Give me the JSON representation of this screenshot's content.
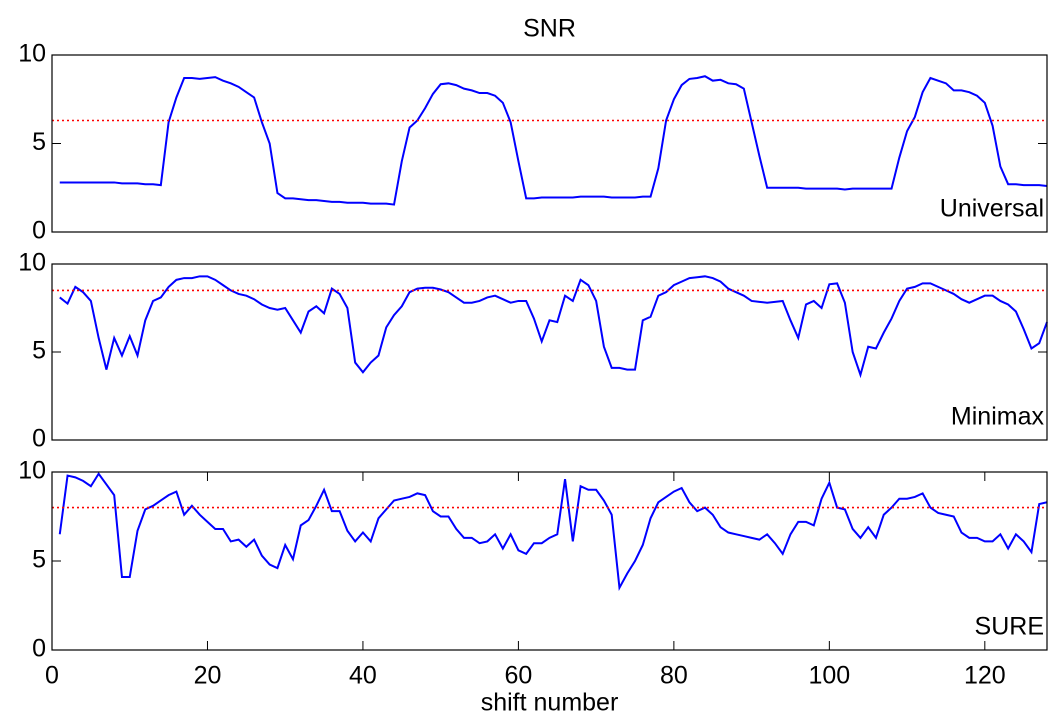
{
  "chart_data": [
    {
      "type": "line",
      "title": "SNR",
      "annotation": "Universal",
      "color": "#0000ff",
      "x": [
        1,
        2,
        3,
        4,
        5,
        6,
        7,
        8,
        9,
        10,
        11,
        12,
        13,
        14,
        15,
        16,
        17,
        18,
        19,
        20,
        21,
        22,
        23,
        24,
        25,
        26,
        27,
        28,
        29,
        30,
        31,
        32,
        33,
        34,
        35,
        36,
        37,
        38,
        39,
        40,
        41,
        42,
        43,
        44,
        45,
        46,
        47,
        48,
        49,
        50,
        51,
        52,
        53,
        54,
        55,
        56,
        57,
        58,
        59,
        60,
        61,
        62,
        63,
        64,
        65,
        66,
        67,
        68,
        69,
        70,
        71,
        72,
        73,
        74,
        75,
        76,
        77,
        78,
        79,
        80,
        81,
        82,
        83,
        84,
        85,
        86,
        87,
        88,
        89,
        90,
        91,
        92,
        93,
        94,
        95,
        96,
        97,
        98,
        99,
        100,
        101,
        102,
        103,
        104,
        105,
        106,
        107,
        108,
        109,
        110,
        111,
        112,
        113,
        114,
        115,
        116,
        117,
        118,
        119,
        120,
        121,
        122,
        123,
        124,
        125,
        126,
        127,
        128
      ],
      "values": [
        2.8,
        2.8,
        2.8,
        2.8,
        2.8,
        2.8,
        2.8,
        2.8,
        2.75,
        2.75,
        2.75,
        2.7,
        2.7,
        2.65,
        6.2,
        7.6,
        8.7,
        8.7,
        8.65,
        8.7,
        8.75,
        8.55,
        8.4,
        8.2,
        7.9,
        7.6,
        6.2,
        5.0,
        2.2,
        1.9,
        1.9,
        1.85,
        1.8,
        1.8,
        1.75,
        1.7,
        1.7,
        1.65,
        1.65,
        1.65,
        1.6,
        1.6,
        1.6,
        1.55,
        4.0,
        5.9,
        6.3,
        7.0,
        7.8,
        8.35,
        8.4,
        8.3,
        8.1,
        8.0,
        7.85,
        7.85,
        7.7,
        7.3,
        6.2,
        4.0,
        1.9,
        1.9,
        1.95,
        1.95,
        1.95,
        1.95,
        1.95,
        2.0,
        2.0,
        2.0,
        2.0,
        1.95,
        1.95,
        1.95,
        1.95,
        2.0,
        2.0,
        3.6,
        6.3,
        7.5,
        8.3,
        8.65,
        8.7,
        8.8,
        8.55,
        8.6,
        8.4,
        8.35,
        8.1,
        6.2,
        4.3,
        2.5,
        2.5,
        2.5,
        2.5,
        2.5,
        2.45,
        2.45,
        2.45,
        2.45,
        2.45,
        2.4,
        2.45,
        2.45,
        2.45,
        2.45,
        2.45,
        2.45,
        4.2,
        5.7,
        6.5,
        7.9,
        8.7,
        8.55,
        8.4,
        8.0,
        8.0,
        7.9,
        7.7,
        7.3,
        6.0,
        3.7,
        2.7,
        2.7,
        2.65,
        2.65,
        2.65,
        2.6
      ],
      "hline": {
        "value": 6.3,
        "color": "#ff0000"
      },
      "xlim": [
        0,
        128
      ],
      "ylim": [
        0,
        10
      ],
      "yticks": [
        0,
        5,
        10
      ]
    },
    {
      "type": "line",
      "annotation": "Minimax",
      "color": "#0000ff",
      "x": [
        1,
        2,
        3,
        4,
        5,
        6,
        7,
        8,
        9,
        10,
        11,
        12,
        13,
        14,
        15,
        16,
        17,
        18,
        19,
        20,
        21,
        22,
        23,
        24,
        25,
        26,
        27,
        28,
        29,
        30,
        31,
        32,
        33,
        34,
        35,
        36,
        37,
        38,
        39,
        40,
        41,
        42,
        43,
        44,
        45,
        46,
        47,
        48,
        49,
        50,
        51,
        52,
        53,
        54,
        55,
        56,
        57,
        58,
        59,
        60,
        61,
        62,
        63,
        64,
        65,
        66,
        67,
        68,
        69,
        70,
        71,
        72,
        73,
        74,
        75,
        76,
        77,
        78,
        79,
        80,
        81,
        82,
        83,
        84,
        85,
        86,
        87,
        88,
        89,
        90,
        91,
        92,
        93,
        94,
        95,
        96,
        97,
        98,
        99,
        100,
        101,
        102,
        103,
        104,
        105,
        106,
        107,
        108,
        109,
        110,
        111,
        112,
        113,
        114,
        115,
        116,
        117,
        118,
        119,
        120,
        121,
        122,
        123,
        124,
        125,
        126,
        127,
        128
      ],
      "values": [
        8.1,
        7.75,
        8.7,
        8.4,
        7.9,
        5.8,
        4.0,
        5.8,
        4.8,
        5.9,
        4.8,
        6.8,
        7.9,
        8.1,
        8.7,
        9.1,
        9.2,
        9.2,
        9.3,
        9.3,
        9.1,
        8.8,
        8.5,
        8.3,
        8.2,
        8.0,
        7.7,
        7.5,
        7.4,
        7.5,
        6.8,
        6.1,
        7.3,
        7.6,
        7.2,
        8.6,
        8.3,
        7.5,
        4.4,
        3.85,
        4.4,
        4.8,
        6.4,
        7.1,
        7.6,
        8.4,
        8.6,
        8.65,
        8.65,
        8.55,
        8.4,
        8.1,
        7.8,
        7.8,
        7.9,
        8.1,
        8.2,
        8.0,
        7.8,
        7.9,
        7.9,
        6.9,
        5.6,
        6.8,
        6.7,
        8.2,
        7.9,
        9.1,
        8.8,
        7.9,
        5.3,
        4.1,
        4.1,
        4.0,
        4.0,
        6.8,
        7.0,
        8.2,
        8.4,
        8.8,
        9.0,
        9.2,
        9.25,
        9.3,
        9.2,
        9.0,
        8.6,
        8.4,
        8.2,
        7.9,
        7.85,
        7.8,
        7.85,
        7.9,
        6.8,
        5.8,
        7.7,
        7.9,
        7.5,
        8.85,
        8.9,
        7.8,
        5.0,
        3.7,
        5.3,
        5.2,
        6.1,
        6.9,
        7.9,
        8.6,
        8.7,
        8.9,
        8.9,
        8.7,
        8.5,
        8.3,
        8.0,
        7.8,
        8.0,
        8.2,
        8.2,
        7.9,
        7.7,
        7.3,
        6.3,
        5.2,
        5.5,
        6.7
      ],
      "hline": {
        "value": 8.5,
        "color": "#ff0000"
      },
      "xlim": [
        0,
        128
      ],
      "ylim": [
        0,
        10
      ],
      "yticks": [
        0,
        5,
        10
      ]
    },
    {
      "type": "line",
      "annotation": "SURE",
      "x_label": "shift number",
      "color": "#0000ff",
      "x": [
        1,
        2,
        3,
        4,
        5,
        6,
        7,
        8,
        9,
        10,
        11,
        12,
        13,
        14,
        15,
        16,
        17,
        18,
        19,
        20,
        21,
        22,
        23,
        24,
        25,
        26,
        27,
        28,
        29,
        30,
        31,
        32,
        33,
        34,
        35,
        36,
        37,
        38,
        39,
        40,
        41,
        42,
        43,
        44,
        45,
        46,
        47,
        48,
        49,
        50,
        51,
        52,
        53,
        54,
        55,
        56,
        57,
        58,
        59,
        60,
        61,
        62,
        63,
        64,
        65,
        66,
        67,
        68,
        69,
        70,
        71,
        72,
        73,
        74,
        75,
        76,
        77,
        78,
        79,
        80,
        81,
        82,
        83,
        84,
        85,
        86,
        87,
        88,
        89,
        90,
        91,
        92,
        93,
        94,
        95,
        96,
        97,
        98,
        99,
        100,
        101,
        102,
        103,
        104,
        105,
        106,
        107,
        108,
        109,
        110,
        111,
        112,
        113,
        114,
        115,
        116,
        117,
        118,
        119,
        120,
        121,
        122,
        123,
        124,
        125,
        126,
        127,
        128
      ],
      "values": [
        6.5,
        9.8,
        9.7,
        9.5,
        9.2,
        9.9,
        9.3,
        8.7,
        4.1,
        4.1,
        6.7,
        7.9,
        8.1,
        8.4,
        8.7,
        8.9,
        7.6,
        8.1,
        7.6,
        7.2,
        6.8,
        6.8,
        6.1,
        6.2,
        5.8,
        6.2,
        5.3,
        4.8,
        4.6,
        5.9,
        5.1,
        7.0,
        7.3,
        8.1,
        9.0,
        7.8,
        7.8,
        6.7,
        6.1,
        6.6,
        6.1,
        7.4,
        7.9,
        8.4,
        8.5,
        8.6,
        8.8,
        8.7,
        7.8,
        7.5,
        7.5,
        6.8,
        6.3,
        6.3,
        6.0,
        6.1,
        6.5,
        5.7,
        6.5,
        5.6,
        5.4,
        6.0,
        6.0,
        6.3,
        6.5,
        9.6,
        6.1,
        9.2,
        9.0,
        9.0,
        8.4,
        7.6,
        3.5,
        4.3,
        5.0,
        5.9,
        7.4,
        8.3,
        8.6,
        8.9,
        9.1,
        8.3,
        7.8,
        8.0,
        7.6,
        6.9,
        6.6,
        6.5,
        6.4,
        6.3,
        6.2,
        6.5,
        6.0,
        5.4,
        6.5,
        7.2,
        7.2,
        7.0,
        8.5,
        9.4,
        8.0,
        7.9,
        6.8,
        6.3,
        6.9,
        6.3,
        7.6,
        8.0,
        8.5,
        8.5,
        8.6,
        8.8,
        8.0,
        7.7,
        7.6,
        7.5,
        6.6,
        6.3,
        6.3,
        6.1,
        6.1,
        6.5,
        5.7,
        6.5,
        6.1,
        5.5,
        8.2,
        8.3
      ],
      "hline": {
        "value": 8.0,
        "color": "#ff0000"
      },
      "xlim": [
        0,
        128
      ],
      "ylim": [
        0,
        10
      ],
      "yticks": [
        0,
        5,
        10
      ],
      "xticks": [
        0,
        20,
        40,
        60,
        80,
        100,
        120
      ]
    }
  ]
}
